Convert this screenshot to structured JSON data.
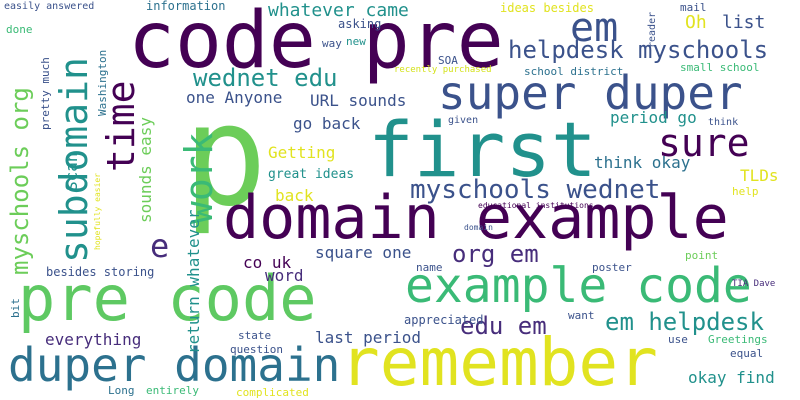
{
  "colors": {
    "background": "#ffffff",
    "yellow": "#e1e320",
    "light_green": "#6ccd59",
    "green": "#3aba76",
    "teal": "#21918c",
    "blue_teal": "#2c718e",
    "blue": "#3b528b",
    "indigo": "#472d7b",
    "deep_purple": "#440154",
    "pale_yellow": "#d4e21a",
    "mint": "#5ec962"
  },
  "words": [
    "p",
    "code pre",
    "first",
    "domain example",
    "pre code",
    "remember",
    "example code",
    "super duper",
    "duper domain",
    "subdomain",
    "work",
    "em",
    "sure",
    "time",
    "myschools wednet",
    "helpdesk myschools",
    "wednet edu",
    "myschools org",
    "em helpdesk",
    "edu em",
    "org em",
    "e",
    "whatever came",
    "Oh",
    "list",
    "one Anyone",
    "URL sounds",
    "go back",
    "period go",
    "Getting",
    "think okay",
    "TLDs",
    "great ideas",
    "back",
    "sounds easy",
    "Scan",
    "return whatever",
    "square one",
    "co uk",
    "word",
    "besides storing",
    "everything",
    "last period",
    "appreciated",
    "okay find",
    "information",
    "easily answered",
    "ideas besides",
    "asking",
    "way",
    "new",
    "SOA",
    "recently purchased",
    "school district",
    "small school",
    "mail",
    "reader",
    "done",
    "pretty much",
    "Washington",
    "given",
    "think",
    "help",
    "hopefully easier",
    "educational institutions",
    "domain",
    "poster",
    "point",
    "TIA Dave",
    "name",
    "want",
    "use",
    "Greetings",
    "equal",
    "bit",
    "state",
    "question",
    "Long",
    "entirely",
    "complicated"
  ]
}
